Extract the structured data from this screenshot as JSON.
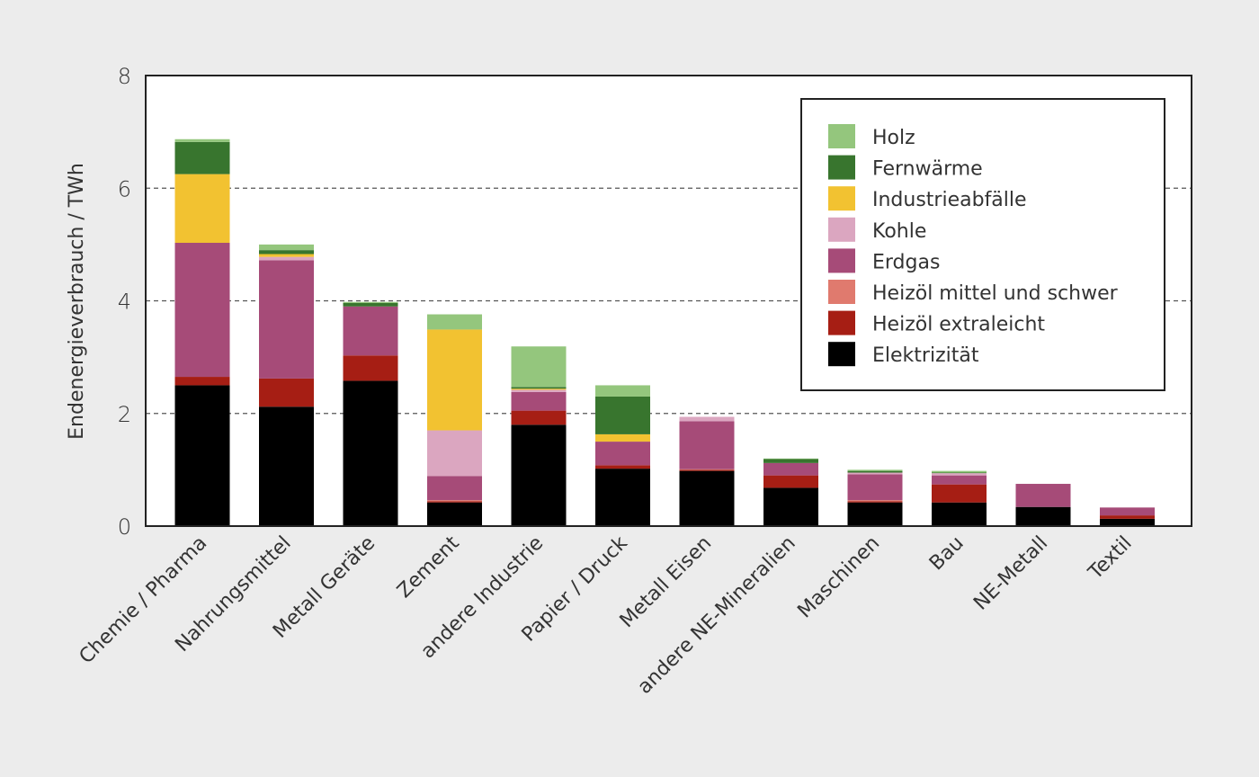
{
  "chart_data": {
    "type": "bar",
    "stacked": true,
    "ylabel": "Endenergieverbrauch / TWh",
    "xlabel": "",
    "ylim": [
      0,
      8
    ],
    "yticks": [
      0,
      2,
      4,
      6,
      8
    ],
    "grid": "dashed horizontal at 2, 4, 6",
    "legend_position": "top-right",
    "categories": [
      "Chemie / Pharma",
      "Nahrungsmittel",
      "Metall Geräte",
      "Zement",
      "andere Industrie",
      "Papier / Druck",
      "Metall Eisen",
      "andere NE-Mineralien",
      "Maschinen",
      "Bau",
      "NE-Metall",
      "Textil"
    ],
    "series": [
      {
        "name": "Elektrizität",
        "color": "#000000",
        "values": [
          2.5,
          2.12,
          2.58,
          0.42,
          1.8,
          1.02,
          0.98,
          0.68,
          0.42,
          0.42,
          0.34,
          0.13
        ]
      },
      {
        "name": "Heizöl extraleicht",
        "color": "#a61e14",
        "values": [
          0.15,
          0.5,
          0.45,
          0.02,
          0.25,
          0.06,
          0.02,
          0.22,
          0.02,
          0.32,
          0.0,
          0.06
        ]
      },
      {
        "name": "Heizöl mittel und schwer",
        "color": "#e07a6e",
        "values": [
          0.0,
          0.0,
          0.0,
          0.02,
          0.0,
          0.0,
          0.01,
          0.0,
          0.02,
          0.0,
          0.0,
          0.0
        ]
      },
      {
        "name": "Erdgas",
        "color": "#a64b78",
        "values": [
          2.38,
          2.1,
          0.87,
          0.43,
          0.33,
          0.42,
          0.85,
          0.22,
          0.46,
          0.16,
          0.41,
          0.14
        ]
      },
      {
        "name": "Kohle",
        "color": "#dba6c0",
        "values": [
          0.0,
          0.06,
          0.0,
          0.81,
          0.04,
          0.0,
          0.08,
          0.0,
          0.03,
          0.04,
          0.0,
          0.0
        ]
      },
      {
        "name": "Industrieabfälle",
        "color": "#f2c231",
        "values": [
          1.22,
          0.05,
          0.0,
          1.79,
          0.02,
          0.13,
          0.0,
          0.0,
          0.0,
          0.0,
          0.0,
          0.0
        ]
      },
      {
        "name": "Fernwärme",
        "color": "#38752e",
        "values": [
          0.57,
          0.07,
          0.06,
          0.0,
          0.03,
          0.67,
          0.0,
          0.07,
          0.03,
          0.01,
          0.0,
          0.0
        ]
      },
      {
        "name": "Holz",
        "color": "#94c67d",
        "values": [
          0.05,
          0.1,
          0.02,
          0.27,
          0.72,
          0.2,
          0.0,
          0.01,
          0.02,
          0.03,
          0.0,
          0.0
        ]
      }
    ],
    "legend_order": [
      "Holz",
      "Fernwärme",
      "Industrieabfälle",
      "Kohle",
      "Erdgas",
      "Heizöl mittel und schwer",
      "Heizöl extraleicht",
      "Elektrizität"
    ]
  }
}
